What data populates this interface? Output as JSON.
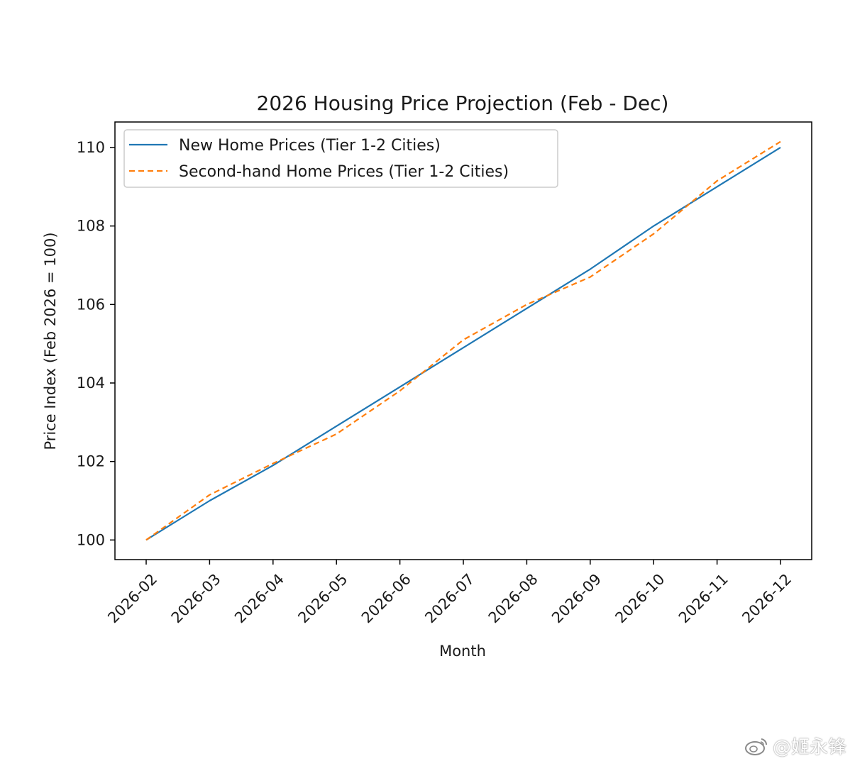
{
  "chart_data": {
    "type": "line",
    "title": "2026 Housing Price Projection (Feb - Dec)",
    "xlabel": "Month",
    "ylabel": "Price Index (Feb 2026 = 100)",
    "categories": [
      "2026-02",
      "2026-03",
      "2026-04",
      "2026-05",
      "2026-06",
      "2026-07",
      "2026-08",
      "2026-09",
      "2026-10",
      "2026-11",
      "2026-12"
    ],
    "yticks": [
      "100",
      "102",
      "104",
      "106",
      "108",
      "110"
    ],
    "ylim": [
      99.5,
      110.65
    ],
    "grid": false,
    "legend_position": "top-left",
    "series": [
      {
        "name": "New Home Prices (Tier 1-2 Cities)",
        "color": "#1f77b4",
        "style": "solid",
        "values": [
          100,
          101.0,
          101.9,
          102.9,
          103.9,
          104.9,
          105.9,
          106.9,
          108.0,
          109.0,
          110.0
        ]
      },
      {
        "name": "Second-hand Home Prices (Tier 1-2 Cities)",
        "color": "#ff7f0e",
        "style": "dashed",
        "values": [
          100,
          101.15,
          101.95,
          102.7,
          103.8,
          105.1,
          106.0,
          106.7,
          107.8,
          109.15,
          110.15
        ]
      }
    ]
  },
  "watermark": {
    "icon": "weibo-icon",
    "text": "@姬永锋"
  }
}
